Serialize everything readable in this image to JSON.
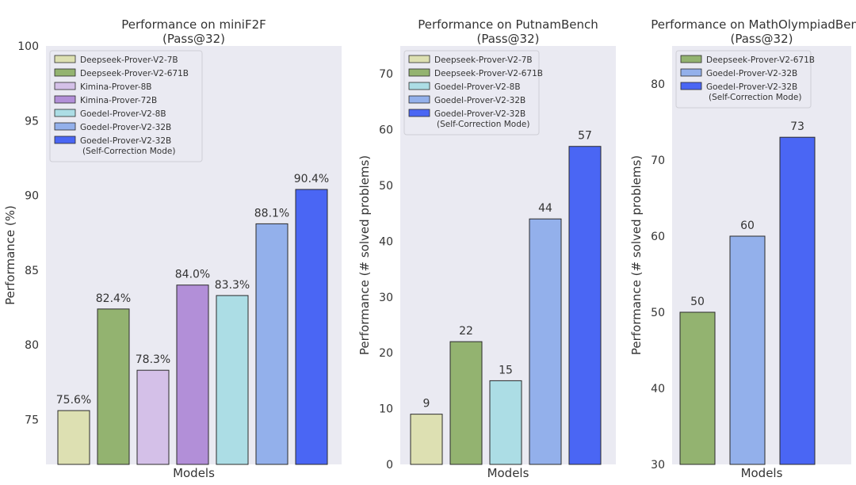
{
  "chart_data": [
    {
      "type": "bar",
      "title": "Performance on miniF2F",
      "subtitle": "(Pass@32)",
      "xlabel": "Models",
      "ylabel": "Performance (%)",
      "ylim": [
        72,
        100
      ],
      "yticks": [
        75,
        80,
        85,
        90,
        95,
        100
      ],
      "grid": false,
      "legend_position": "top-left",
      "categories": [
        "Deepseek-Prover-V2-7B",
        "Deepseek-Prover-V2-671B",
        "Kimina-Prover-8B",
        "Kimina-Prover-72B",
        "Goedel-Prover-V2-8B",
        "Goedel-Prover-V2-32B",
        "Goedel-Prover-V2-32B (Self-Correction Mode)"
      ],
      "values": [
        75.6,
        82.4,
        78.3,
        84.0,
        83.3,
        88.1,
        90.4
      ],
      "value_labels": [
        "75.6%",
        "82.4%",
        "78.3%",
        "84.0%",
        "83.3%",
        "88.1%",
        "90.4%"
      ],
      "colors": [
        "#dde0b2",
        "#93b370",
        "#d4c0e8",
        "#b28fd8",
        "#acdde5",
        "#93b0eb",
        "#4a66f4"
      ],
      "legend": [
        [
          "Deepseek-Prover-V2-7B"
        ],
        [
          "Deepseek-Prover-V2-671B"
        ],
        [
          "Kimina-Prover-8B"
        ],
        [
          "Kimina-Prover-72B"
        ],
        [
          "Goedel-Prover-V2-8B"
        ],
        [
          "Goedel-Prover-V2-32B"
        ],
        [
          "Goedel-Prover-V2-32B",
          "(Self-Correction Mode)"
        ]
      ]
    },
    {
      "type": "bar",
      "title": "Performance on PutnamBench",
      "subtitle": "(Pass@32)",
      "xlabel": "Models",
      "ylabel": "Performance (# solved problems)",
      "ylim": [
        0,
        75
      ],
      "yticks": [
        0,
        10,
        20,
        30,
        40,
        50,
        60,
        70
      ],
      "grid": false,
      "legend_position": "top-left",
      "categories": [
        "Deepseek-Prover-V2-7B",
        "Deepseek-Prover-V2-671B",
        "Goedel-Prover-V2-8B",
        "Goedel-Prover-V2-32B",
        "Goedel-Prover-V2-32B (Self-Correction Mode)"
      ],
      "values": [
        9,
        22,
        15,
        44,
        57
      ],
      "value_labels": [
        "9",
        "22",
        "15",
        "44",
        "57"
      ],
      "colors": [
        "#dde0b2",
        "#93b370",
        "#acdde5",
        "#93b0eb",
        "#4a66f4"
      ],
      "legend": [
        [
          "Deepseek-Prover-V2-7B"
        ],
        [
          "Deepseek-Prover-V2-671B"
        ],
        [
          "Goedel-Prover-V2-8B"
        ],
        [
          "Goedel-Prover-V2-32B"
        ],
        [
          "Goedel-Prover-V2-32B",
          "(Self-Correction Mode)"
        ]
      ]
    },
    {
      "type": "bar",
      "title": "Performance on MathOlympiadBench",
      "subtitle": "(Pass@32)",
      "xlabel": "Models",
      "ylabel": "Performance (# solved problems)",
      "ylim": [
        30,
        85
      ],
      "yticks": [
        30,
        40,
        50,
        60,
        70,
        80
      ],
      "grid": false,
      "legend_position": "top-left",
      "categories": [
        "Deepseek-Prover-V2-671B",
        "Goedel-Prover-V2-32B",
        "Goedel-Prover-V2-32B (Self-Correction Mode)"
      ],
      "values": [
        50,
        60,
        73
      ],
      "value_labels": [
        "50",
        "60",
        "73"
      ],
      "colors": [
        "#93b370",
        "#93b0eb",
        "#4a66f4"
      ],
      "legend": [
        [
          "Deepseek-Prover-V2-671B"
        ],
        [
          "Goedel-Prover-V2-32B"
        ],
        [
          "Goedel-Prover-V2-32B",
          "(Self-Correction Mode)"
        ]
      ]
    }
  ]
}
